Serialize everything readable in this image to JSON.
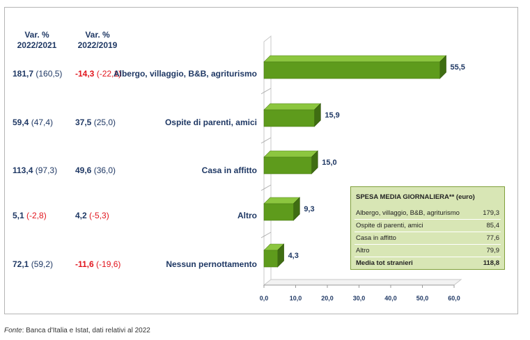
{
  "headers": {
    "col1": [
      "Var. %",
      "2022/2021"
    ],
    "col2": [
      "Var. %",
      "2022/2019"
    ]
  },
  "rows": [
    {
      "v1": "181,7",
      "v1p": "(160,5)",
      "v1_color": "#1f3864",
      "v1p_color": "#1f3864",
      "v2": "-14,3",
      "v2p": "(-22,1)",
      "v2_color": "#e1141c",
      "v2p_color": "#e1141c"
    },
    {
      "v1": "59,4",
      "v1p": "(47,4)",
      "v1_color": "#1f3864",
      "v1p_color": "#1f3864",
      "v2": "37,5",
      "v2p": "(25,0)",
      "v2_color": "#1f3864",
      "v2p_color": "#1f3864"
    },
    {
      "v1": "113,4",
      "v1p": "(97,3)",
      "v1_color": "#1f3864",
      "v1p_color": "#1f3864",
      "v2": "49,6",
      "v2p": "(36,0)",
      "v2_color": "#1f3864",
      "v2p_color": "#1f3864"
    },
    {
      "v1": "5,1",
      "v1p": "(-2,8)",
      "v1_color": "#1f3864",
      "v1p_color": "#e1141c",
      "v2": "4,2",
      "v2p": "(-5,3)",
      "v2_color": "#1f3864",
      "v2p_color": "#e1141c"
    },
    {
      "v1": "72,1",
      "v1p": "(59,2)",
      "v1_color": "#1f3864",
      "v1p_color": "#1f3864",
      "v2": "-11,6",
      "v2p": "(-19,6)",
      "v2_color": "#e1141c",
      "v2p_color": "#e1141c"
    }
  ],
  "chart_data": {
    "type": "bar",
    "orientation": "horizontal",
    "style": "3d",
    "categories": [
      "Albergo, villaggio, B&B, agriturismo",
      "Ospite di parenti, amici",
      "Casa in affitto",
      "Altro",
      "Nessun pernottamento"
    ],
    "values": [
      55.5,
      15.9,
      15.0,
      9.3,
      4.3
    ],
    "value_labels": [
      "55,5",
      "15,9",
      "15,0",
      "9,3",
      "4,3"
    ],
    "xlim": [
      0,
      60
    ],
    "xticks": [
      0,
      10,
      20,
      30,
      40,
      50,
      60
    ],
    "xtick_labels": [
      "0,0",
      "10,0",
      "20,0",
      "30,0",
      "40,0",
      "50,0",
      "60,0"
    ],
    "bar_color": "#5e9b1c",
    "bar_top_color": "#8cc63f",
    "bar_side_color": "#3f6d12"
  },
  "legend_table": {
    "title": "SPESA MEDIA GIORNALIERA** (euro)",
    "rows": [
      {
        "label": "Albergo, villaggio, B&B, agriturismo",
        "value": "179,3"
      },
      {
        "label": "Ospite di parenti, amici",
        "value": "85,4"
      },
      {
        "label": "Casa in affitto",
        "value": "77,6"
      },
      {
        "label": "Altro",
        "value": "79,9"
      },
      {
        "label": "Media tot stranieri",
        "value": "118,8"
      }
    ]
  },
  "footer": {
    "source_label": "Fonte",
    "source_text": ": Banca d'Italia e Istat, dati relativi al 2022"
  }
}
